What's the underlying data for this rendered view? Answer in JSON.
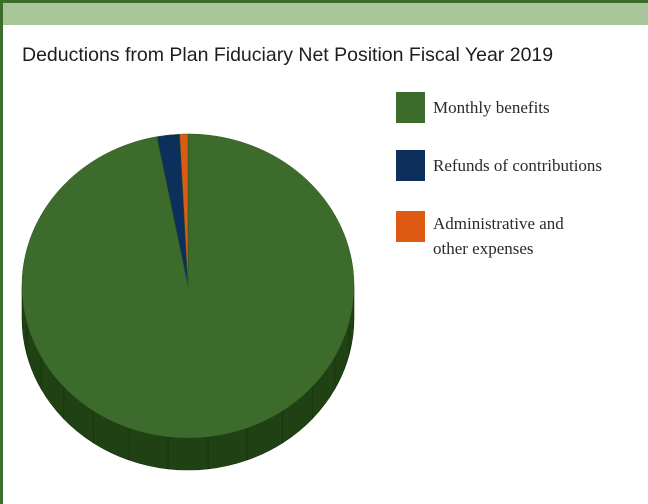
{
  "chart_data": {
    "type": "pie",
    "title": "Deductions from Plan Fiduciary Net Position Fiscal Year 2019",
    "slices": [
      {
        "label": "Monthly benefits",
        "value": 97.0,
        "color": "#3c6b2b",
        "side_color": "#1f4114"
      },
      {
        "label": "Refunds of contributions",
        "value": 2.2,
        "color": "#0c2f5c",
        "side_color": "#081f3d"
      },
      {
        "label": "Administrative and\nother expenses",
        "value": 0.8,
        "color": "#de5a12",
        "side_color": "#8a3507"
      }
    ],
    "legend_position": "right",
    "style": "3d"
  }
}
